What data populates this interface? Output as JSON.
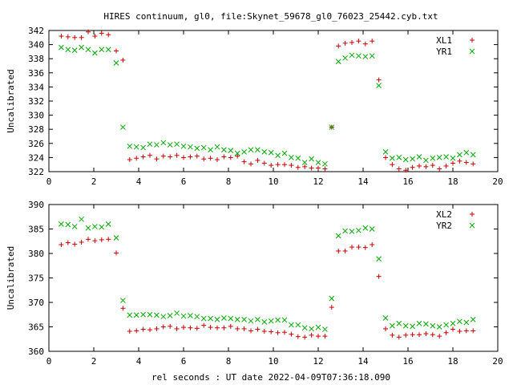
{
  "page": {
    "title": "HIRES continuum, gl0, file:Skynet_59678_gl0_76023_25442.cyb.txt",
    "xlabel": "rel seconds : UT date 2022-04-09T07:36:18.090"
  },
  "chart_data": [
    {
      "type": "scatter",
      "ylabel": "Uncalibrated",
      "xlim": [
        0,
        20
      ],
      "ylim": [
        322,
        342
      ],
      "xticks": [
        0,
        2,
        4,
        6,
        8,
        10,
        12,
        14,
        16,
        18,
        20
      ],
      "yticks": [
        322,
        324,
        326,
        328,
        330,
        332,
        334,
        336,
        338,
        340,
        342
      ],
      "grid": false,
      "legend_position": "top-right",
      "series": [
        {
          "name": "XL1",
          "marker": "plus",
          "color": "#cc0000",
          "x": [
            0.55,
            0.85,
            1.15,
            1.45,
            1.75,
            2.05,
            2.35,
            2.65,
            3.0,
            3.3,
            3.6,
            3.9,
            4.2,
            4.5,
            4.8,
            5.1,
            5.4,
            5.7,
            6.0,
            6.3,
            6.6,
            6.9,
            7.2,
            7.5,
            7.8,
            8.1,
            8.4,
            8.7,
            9.0,
            9.3,
            9.6,
            9.9,
            10.2,
            10.5,
            10.8,
            11.1,
            11.4,
            11.7,
            12.0,
            12.3,
            12.6,
            12.9,
            13.2,
            13.5,
            13.8,
            14.1,
            14.4,
            14.7,
            15.0,
            15.3,
            15.6,
            15.9,
            16.2,
            16.5,
            16.8,
            17.1,
            17.4,
            17.7,
            18.0,
            18.3,
            18.6,
            18.9
          ],
          "y": [
            341.2,
            341.1,
            341.0,
            341.0,
            341.8,
            341.2,
            341.6,
            341.4,
            339.1,
            337.8,
            323.7,
            323.9,
            324.1,
            324.3,
            323.8,
            324.2,
            324.1,
            324.3,
            324.0,
            324.1,
            324.2,
            323.8,
            323.9,
            323.7,
            324.1,
            324.0,
            324.2,
            323.4,
            323.1,
            323.6,
            323.2,
            322.9,
            323.0,
            323.0,
            322.9,
            322.6,
            322.7,
            322.5,
            322.5,
            322.4,
            328.3,
            339.8,
            340.2,
            340.3,
            340.5,
            340.1,
            340.5,
            335.0,
            324.0,
            323.0,
            322.4,
            322.2,
            322.6,
            322.8,
            322.7,
            322.9,
            322.4,
            322.8,
            323.2,
            323.5,
            323.3,
            323.1
          ]
        },
        {
          "name": "YR1",
          "marker": "x",
          "color": "#00aa00",
          "x": [
            0.55,
            0.85,
            1.15,
            1.45,
            1.75,
            2.05,
            2.35,
            2.65,
            3.0,
            3.3,
            3.6,
            3.9,
            4.2,
            4.5,
            4.8,
            5.1,
            5.4,
            5.7,
            6.0,
            6.3,
            6.6,
            6.9,
            7.2,
            7.5,
            7.8,
            8.1,
            8.4,
            8.7,
            9.0,
            9.3,
            9.6,
            9.9,
            10.2,
            10.5,
            10.8,
            11.1,
            11.4,
            11.7,
            12.0,
            12.3,
            12.6,
            12.9,
            13.2,
            13.5,
            13.8,
            14.1,
            14.4,
            14.7,
            15.0,
            15.3,
            15.6,
            15.9,
            16.2,
            16.5,
            16.8,
            17.1,
            17.4,
            17.7,
            18.0,
            18.3,
            18.6,
            18.9
          ],
          "y": [
            339.6,
            339.3,
            339.2,
            339.6,
            339.3,
            338.8,
            339.3,
            339.3,
            337.4,
            328.3,
            325.6,
            325.5,
            325.4,
            325.9,
            325.8,
            326.1,
            325.8,
            325.9,
            325.6,
            325.5,
            325.3,
            325.4,
            325.1,
            325.5,
            325.1,
            325.0,
            324.6,
            324.8,
            325.1,
            325.1,
            324.8,
            324.7,
            324.3,
            324.6,
            324.0,
            323.9,
            323.3,
            323.8,
            323.3,
            323.1,
            328.3,
            337.6,
            338.1,
            338.5,
            338.4,
            338.3,
            338.4,
            334.2,
            324.8,
            323.9,
            324.0,
            323.7,
            323.8,
            324.1,
            323.6,
            323.9,
            324.0,
            324.1,
            323.9,
            324.4,
            324.7,
            324.4
          ]
        }
      ]
    },
    {
      "type": "scatter",
      "ylabel": "Uncalibrated",
      "xlim": [
        0,
        20
      ],
      "ylim": [
        360,
        390
      ],
      "xticks": [
        0,
        2,
        4,
        6,
        8,
        10,
        12,
        14,
        16,
        18,
        20
      ],
      "yticks": [
        360,
        365,
        370,
        375,
        380,
        385,
        390
      ],
      "grid": false,
      "legend_position": "top-right",
      "series": [
        {
          "name": "XL2",
          "marker": "plus",
          "color": "#cc0000",
          "x": [
            0.55,
            0.85,
            1.15,
            1.45,
            1.75,
            2.05,
            2.35,
            2.65,
            3.0,
            3.3,
            3.6,
            3.9,
            4.2,
            4.5,
            4.8,
            5.1,
            5.4,
            5.7,
            6.0,
            6.3,
            6.6,
            6.9,
            7.2,
            7.5,
            7.8,
            8.1,
            8.4,
            8.7,
            9.0,
            9.3,
            9.6,
            9.9,
            10.2,
            10.5,
            10.8,
            11.1,
            11.4,
            11.7,
            12.0,
            12.3,
            12.6,
            12.9,
            13.2,
            13.5,
            13.8,
            14.1,
            14.4,
            14.7,
            15.0,
            15.3,
            15.6,
            15.9,
            16.2,
            16.5,
            16.8,
            17.1,
            17.4,
            17.7,
            18.0,
            18.3,
            18.6,
            18.9
          ],
          "y": [
            381.8,
            382.2,
            381.9,
            382.3,
            382.9,
            382.6,
            382.8,
            382.9,
            380.1,
            368.8,
            364.1,
            364.2,
            364.5,
            364.4,
            364.6,
            365.0,
            365.1,
            364.6,
            364.9,
            364.8,
            364.7,
            365.3,
            364.9,
            364.8,
            364.8,
            365.1,
            364.6,
            364.6,
            364.2,
            364.5,
            364.1,
            364.0,
            363.8,
            363.9,
            363.5,
            363.0,
            362.9,
            363.3,
            363.1,
            363.1,
            369.0,
            380.5,
            380.5,
            381.3,
            381.3,
            381.2,
            381.8,
            375.3,
            364.6,
            363.3,
            362.9,
            363.3,
            363.4,
            363.4,
            363.6,
            363.4,
            363.1,
            363.8,
            364.5,
            364.1,
            364.2,
            364.2
          ]
        },
        {
          "name": "YR2",
          "marker": "x",
          "color": "#00aa00",
          "x": [
            0.55,
            0.85,
            1.15,
            1.45,
            1.75,
            2.05,
            2.35,
            2.65,
            3.0,
            3.3,
            3.6,
            3.9,
            4.2,
            4.5,
            4.8,
            5.1,
            5.4,
            5.7,
            6.0,
            6.3,
            6.6,
            6.9,
            7.2,
            7.5,
            7.8,
            8.1,
            8.4,
            8.7,
            9.0,
            9.3,
            9.6,
            9.9,
            10.2,
            10.5,
            10.8,
            11.1,
            11.4,
            11.7,
            12.0,
            12.3,
            12.6,
            12.9,
            13.2,
            13.5,
            13.8,
            14.1,
            14.4,
            14.7,
            15.0,
            15.3,
            15.6,
            15.9,
            16.2,
            16.5,
            16.8,
            17.1,
            17.4,
            17.7,
            18.0,
            18.3,
            18.6,
            18.9
          ],
          "y": [
            386.0,
            385.9,
            385.5,
            387.0,
            385.2,
            385.5,
            385.4,
            386.0,
            383.2,
            370.4,
            367.4,
            367.4,
            367.5,
            367.5,
            367.4,
            367.1,
            367.3,
            367.8,
            367.2,
            367.3,
            367.1,
            366.7,
            366.7,
            366.5,
            366.8,
            366.7,
            366.5,
            366.5,
            366.2,
            366.5,
            366.0,
            366.2,
            366.4,
            366.4,
            365.4,
            365.4,
            364.8,
            364.6,
            364.9,
            364.5,
            370.8,
            383.6,
            384.6,
            384.5,
            384.7,
            385.2,
            385.0,
            378.9,
            366.8,
            365.2,
            365.7,
            365.2,
            365.1,
            365.7,
            365.6,
            365.2,
            365.0,
            365.4,
            365.7,
            366.1,
            365.9,
            366.5
          ]
        }
      ]
    }
  ]
}
